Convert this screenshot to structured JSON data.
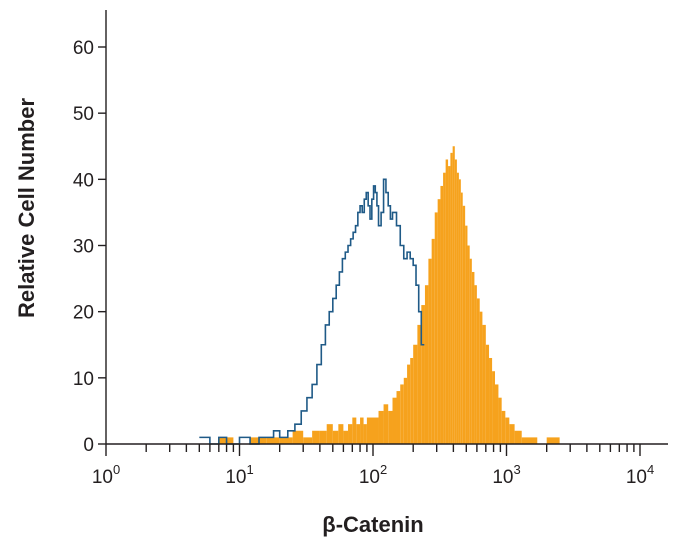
{
  "chart_data": {
    "type": "area",
    "xlabel": "β-Catenin",
    "ylabel": "Relative Cell Number",
    "x_scale": "log",
    "xlim": [
      1,
      20000
    ],
    "ylim": [
      0,
      64
    ],
    "x_ticks": [
      {
        "base": "10",
        "exp": "0",
        "value": 1
      },
      {
        "base": "10",
        "exp": "1",
        "value": 10
      },
      {
        "base": "10",
        "exp": "2",
        "value": 100
      },
      {
        "base": "10",
        "exp": "3",
        "value": 1000
      },
      {
        "base": "10",
        "exp": "4",
        "value": 10000
      }
    ],
    "y_ticks": [
      {
        "label": "0",
        "value": 0
      },
      {
        "label": "10",
        "value": 10
      },
      {
        "label": "20",
        "value": 20
      },
      {
        "label": "30",
        "value": 30
      },
      {
        "label": "40",
        "value": 40
      },
      {
        "label": "50",
        "value": 50
      },
      {
        "label": "60",
        "value": 60
      }
    ],
    "grid": false,
    "series": [
      {
        "style": "step-outline",
        "color": "#1f5a87",
        "x": [
          5,
          6,
          7,
          8,
          10,
          12,
          14,
          16,
          18,
          20,
          23,
          26,
          29,
          32,
          35,
          38,
          41,
          44,
          47,
          50,
          53,
          56,
          59,
          62,
          65,
          68,
          71,
          74,
          77,
          80,
          83,
          86,
          89,
          92,
          95,
          98,
          101,
          104,
          107,
          110,
          115,
          120,
          125,
          130,
          135,
          140,
          150,
          160,
          170,
          180,
          190,
          200,
          210,
          220,
          230
        ],
        "values": [
          1,
          0,
          1,
          0,
          1,
          0,
          1,
          1,
          2,
          1,
          2,
          3,
          5,
          7,
          9,
          12,
          15,
          18,
          20,
          22,
          24,
          26,
          28,
          29,
          30,
          31,
          32,
          33,
          35,
          36,
          35,
          37,
          38,
          36,
          34,
          37,
          39,
          38,
          36,
          33,
          35,
          40,
          38,
          36,
          34,
          35,
          33,
          30,
          28,
          29,
          28,
          27,
          24,
          20,
          15
        ]
      },
      {
        "style": "filled",
        "color": "#f6a21d",
        "x": [
          7,
          9,
          12,
          16,
          20,
          25,
          30,
          35,
          40,
          45,
          50,
          55,
          60,
          65,
          70,
          75,
          80,
          85,
          90,
          100,
          110,
          120,
          130,
          140,
          150,
          160,
          170,
          180,
          190,
          200,
          215,
          230,
          245,
          260,
          275,
          290,
          305,
          320,
          335,
          350,
          365,
          380,
          395,
          410,
          425,
          440,
          455,
          470,
          490,
          510,
          530,
          550,
          575,
          600,
          630,
          660,
          700,
          740,
          780,
          820,
          870,
          920,
          980,
          1050,
          1150,
          1300,
          1500,
          1700,
          2000,
          2500
        ],
        "values": [
          1,
          0,
          1,
          1,
          1,
          2,
          1,
          2,
          2,
          3,
          2,
          3,
          2,
          3,
          4,
          3,
          4,
          3,
          4,
          4,
          5,
          6,
          5,
          7,
          8,
          9,
          10,
          12,
          13,
          15,
          18,
          21,
          24,
          28,
          31,
          35,
          37,
          39,
          41,
          43,
          42,
          44,
          45,
          43,
          41,
          40,
          38,
          36,
          33,
          30,
          28,
          26,
          24,
          22,
          20,
          18,
          15,
          13,
          11,
          9,
          7,
          5,
          4,
          3,
          2,
          1,
          1,
          0,
          1,
          0
        ]
      }
    ]
  }
}
